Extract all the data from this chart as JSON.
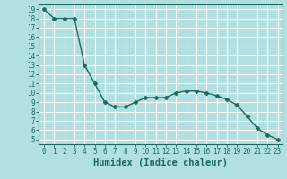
{
  "x": [
    0,
    1,
    2,
    3,
    4,
    5,
    6,
    7,
    8,
    9,
    10,
    11,
    12,
    13,
    14,
    15,
    16,
    17,
    18,
    19,
    20,
    21,
    22,
    23
  ],
  "y": [
    19,
    18,
    18,
    18,
    13,
    11,
    9,
    8.5,
    8.5,
    9,
    9.5,
    9.5,
    9.5,
    10,
    10.2,
    10.2,
    10,
    9.7,
    9.3,
    8.7,
    7.5,
    6.2,
    5.5,
    5
  ],
  "line_color": "#1a6b5e",
  "marker": "D",
  "marker_size": 2.5,
  "bg_color": "#b2e0e0",
  "grid_color": "#ffffff",
  "xlabel": "Humidex (Indice chaleur)",
  "xlim": [
    -0.5,
    23.5
  ],
  "ylim": [
    4.5,
    19.5
  ],
  "yticks": [
    5,
    6,
    7,
    8,
    9,
    10,
    11,
    12,
    13,
    14,
    15,
    16,
    17,
    18,
    19
  ],
  "xticks": [
    0,
    1,
    2,
    3,
    4,
    5,
    6,
    7,
    8,
    9,
    10,
    11,
    12,
    13,
    14,
    15,
    16,
    17,
    18,
    19,
    20,
    21,
    22,
    23
  ],
  "tick_color": "#1a6b5e",
  "tick_fontsize": 5.5,
  "xlabel_fontsize": 7.5,
  "linewidth": 1.0
}
